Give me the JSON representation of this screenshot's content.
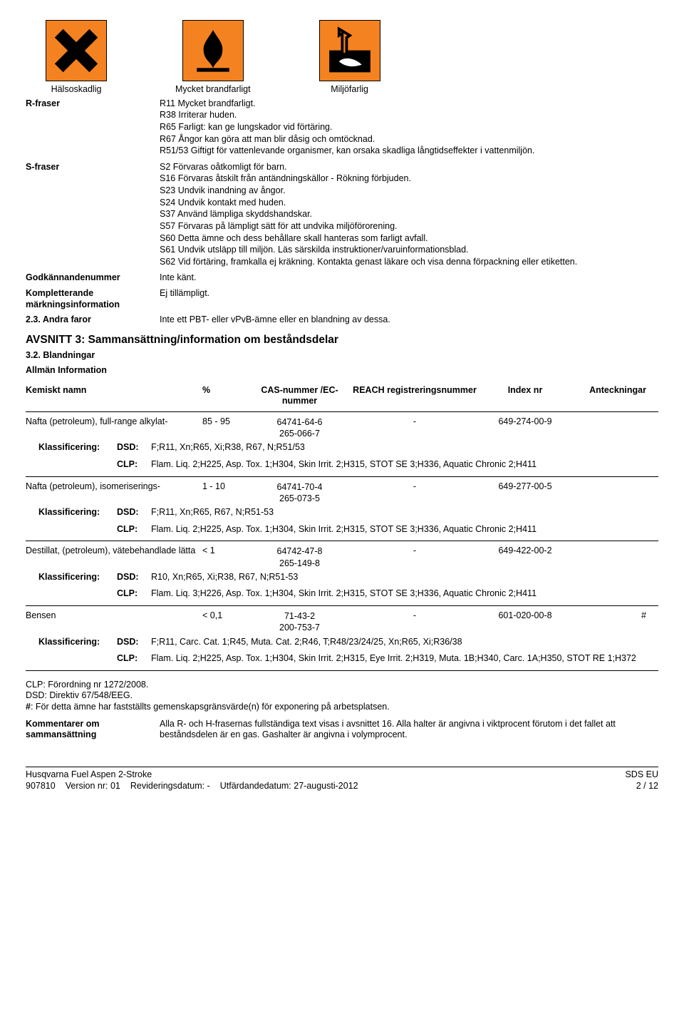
{
  "hazard_pictograms": {
    "bg_color": "#f58220",
    "border_color": "#000000",
    "items": [
      {
        "name": "harmful-x",
        "label": "Hälsoskadlig"
      },
      {
        "name": "flammable",
        "label": "Mycket brandfarligt"
      },
      {
        "name": "environment",
        "label": "Miljöfarlig"
      }
    ]
  },
  "info_rows": {
    "r_label": "R-fraser",
    "r_phrases": [
      "R11 Mycket brandfarligt.",
      "R38 Irriterar huden.",
      "R65 Farligt: kan ge lungskador vid förtäring.",
      "R67 Ångor kan göra att man blir dåsig och omtöcknad.",
      "R51/53 Giftigt för vattenlevande organismer, kan orsaka skadliga långtidseffekter i vattenmiljön."
    ],
    "s_label": "S-fraser",
    "s_phrases": [
      "S2 Förvaras oåtkomligt för barn.",
      "S16 Förvaras åtskilt från antändningskällor - Rökning förbjuden.",
      "S23 Undvik inandning av ångor.",
      "S24 Undvik kontakt med huden.",
      "S37 Använd lämpliga skyddshandskar.",
      "S57 Förvaras på lämpligt sätt för att undvika miljöförorening.",
      "S60 Detta ämne och dess behållare skall hanteras som farligt avfall.",
      "S61 Undvik utsläpp till miljön. Läs särskilda instruktioner/varuinformationsblad.",
      "S62 Vid förtäring, framkalla ej kräkning. Kontakta genast läkare och visa denna förpackning eller etiketten."
    ],
    "godk_label": "Godkännandenummer",
    "godk_value": "Inte känt.",
    "komp_label": "Kompletterande märkningsinformation",
    "komp_value": "Ej tillämpligt.",
    "andra_label": "2.3. Andra faror",
    "andra_value": "Inte ett PBT- eller vPvB-ämne eller en blandning av dessa."
  },
  "section3": {
    "title": "AVSNITT 3: Sammansättning/information om beståndsdelar",
    "sub1": "3.2. Blandningar",
    "sub2": "Allmän Information"
  },
  "table": {
    "header": {
      "name": "Kemiskt namn",
      "pct": "%",
      "cas": "CAS-nummer /EC-nummer",
      "reach": "REACH registreringsnummer",
      "idx": "Index nr",
      "note": "Anteckningar"
    },
    "rows": [
      {
        "name": "Nafta (petroleum), full-range alkylat-",
        "pct": "85 - 95",
        "cas1": "64741-64-6",
        "cas2": "265-066-7",
        "reach": "-",
        "idx": "649-274-00-9",
        "note": "",
        "dsd": "F;R11, Xn;R65, Xi;R38, R67, N;R51/53",
        "clp": "Flam. Liq. 2;H225, Asp. Tox. 1;H304, Skin Irrit. 2;H315, STOT SE 3;H336, Aquatic Chronic 2;H411"
      },
      {
        "name": "Nafta (petroleum), isomeriserings-",
        "pct": "1 - 10",
        "cas1": "64741-70-4",
        "cas2": "265-073-5",
        "reach": "-",
        "idx": "649-277-00-5",
        "note": "",
        "dsd": "F;R11, Xn;R65, R67, N;R51-53",
        "clp": "Flam. Liq. 2;H225, Asp. Tox. 1;H304, Skin Irrit. 2;H315, STOT SE 3;H336, Aquatic Chronic 2;H411"
      },
      {
        "name": "Destillat, (petroleum), vätebehandlade lätta",
        "pct": "< 1",
        "cas1": "64742-47-8",
        "cas2": "265-149-8",
        "reach": "-",
        "idx": "649-422-00-2",
        "note": "",
        "dsd": "R10, Xn;R65, Xi;R38, R67, N;R51-53",
        "clp": "Flam. Liq. 3;H226, Asp. Tox. 1;H304, Skin Irrit. 2;H315, STOT SE 3;H336, Aquatic Chronic 2;H411"
      },
      {
        "name": "Bensen",
        "pct": "< 0,1",
        "cas1": "71-43-2",
        "cas2": "200-753-7",
        "reach": "-",
        "idx": "601-020-00-8",
        "note": "#",
        "dsd": "F;R11, Carc. Cat. 1;R45, Muta. Cat. 2;R46, T;R48/23/24/25, Xn;R65, Xi;R36/38",
        "clp": "Flam. Liq. 2;H225, Asp. Tox. 1;H304, Skin Irrit. 2;H315, Eye Irrit. 2;H319, Muta. 1B;H340, Carc. 1A;H350, STOT RE 1;H372"
      }
    ],
    "class_labels": {
      "klass": "Klassificering:",
      "dsd": "DSD:",
      "clp": "CLP:"
    }
  },
  "footnotes": {
    "l1": "CLP: Förordning nr 1272/2008.",
    "l2": "DSD: Direktiv 67/548/EEG.",
    "l3_prefix": "#",
    "l3": ": För detta ämne har fastställts gemenskapsgränsvärde(n) för exponering på arbetsplatsen."
  },
  "comment": {
    "label": "Kommentarer om sammansättning",
    "text": "Alla R- och H-frasernas fullständiga text visas i avsnittet 16. Alla halter är angivna i viktprocent förutom i det fallet att beståndsdelen är en gas. Gashalter är angivna i volymprocent."
  },
  "footer": {
    "product": "Husqvarna Fuel Aspen 2-Stroke",
    "id": "907810",
    "version_label": "Version nr: 01",
    "revid": "Revideringsdatum: -",
    "utf": "Utfärdandedatum: 27-augusti-2012",
    "sds": "SDS EU",
    "page": "2 / 12"
  }
}
